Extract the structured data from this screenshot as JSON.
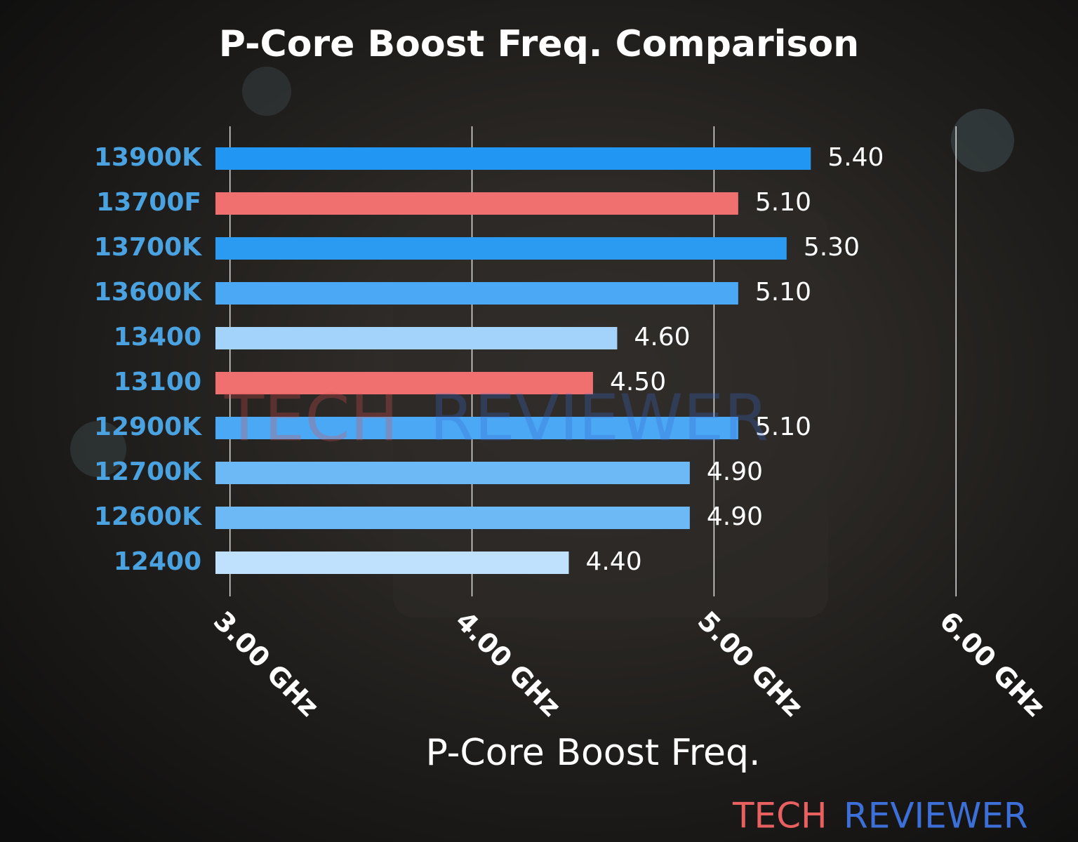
{
  "chart_data": {
    "type": "barh",
    "title": "P-Core Boost Freq. Comparison",
    "x_label": "P-Core Boost Freq.",
    "categories": [
      "13900K",
      "13700F",
      "13700K",
      "13600K",
      "13400",
      "13100",
      "12900K",
      "12700K",
      "12600K",
      "12400"
    ],
    "values": [
      5.4,
      5.1,
      5.3,
      5.1,
      4.6,
      4.5,
      5.1,
      4.9,
      4.9,
      4.4
    ],
    "value_labels": [
      "5.40",
      "5.10",
      "5.30",
      "5.10",
      "4.60",
      "4.50",
      "5.10",
      "4.90",
      "4.90",
      "4.40"
    ],
    "colors": [
      "#2196f3",
      "#f07070",
      "#2a9bf0",
      "#4aa8f5",
      "#a3d3fa",
      "#f07070",
      "#4aa8f5",
      "#6cb9f6",
      "#6cb9f6",
      "#bfe1fd"
    ],
    "xlim": [
      2.94,
      6.04
    ],
    "xticks": [
      {
        "value": 3,
        "label": "3.00 GHz"
      },
      {
        "value": 4,
        "label": "4.00 GHz"
      },
      {
        "value": 5,
        "label": "5.00 GHz"
      },
      {
        "value": 6,
        "label": "6.00 GHz"
      }
    ],
    "grid": true,
    "watermark": [
      "TECH",
      "REVIEWER"
    ]
  }
}
